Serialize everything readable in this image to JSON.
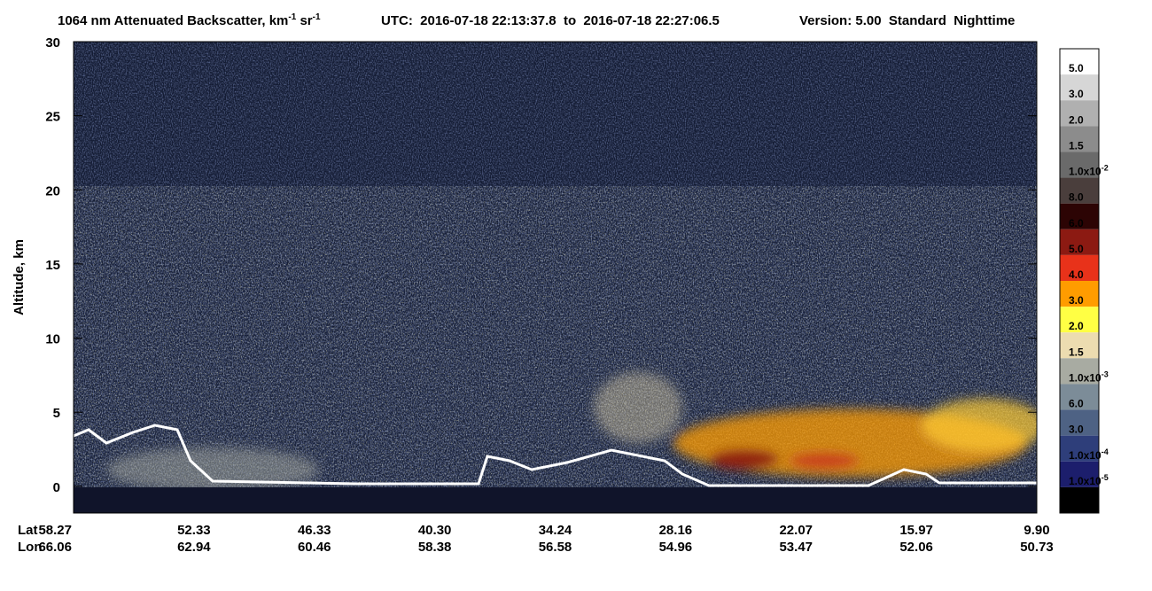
{
  "chart_data": {
    "type": "curtain",
    "title": [
      "1064 nm Attenuated Backscatter, km",
      "-1",
      " sr",
      "-1"
    ],
    "utc": "UTC:  2016-07-18 22:13:37.8  to  2016-07-18 22:27:06.5",
    "version": "Version: 5.00  Standard  Nighttime",
    "ylabel": "Altitude, km",
    "ylim": [
      -1.8,
      30
    ],
    "yticks": [
      0,
      5,
      10,
      15,
      20,
      25,
      30
    ],
    "xrows": [
      {
        "name": "Lat",
        "labels": [
          "58.27",
          "52.33",
          "46.33",
          "40.30",
          "34.24",
          "28.16",
          "22.07",
          "15.97",
          "9.90"
        ]
      },
      {
        "name": "Lon",
        "labels": [
          "66.06",
          "62.94",
          "60.46",
          "58.38",
          "56.58",
          "54.96",
          "53.47",
          "52.06",
          "50.73"
        ]
      }
    ],
    "colorbar": {
      "colors": [
        "#ffffff",
        "#d6d6d6",
        "#b0b0b0",
        "#8c8c8c",
        "#6a6a6a",
        "#4a3e3c",
        "#2c0404",
        "#8c1a12",
        "#e8321a",
        "#ff9c00",
        "#ffff44",
        "#ecdcb0",
        "#a8aba2",
        "#7c8c98",
        "#4e6284",
        "#2e3e7a",
        "#1c1e6c",
        "#000000"
      ],
      "tick_labels": [
        {
          "text": "5.0"
        },
        {
          "text": "3.0"
        },
        {
          "text": "2.0"
        },
        {
          "text": "1.5"
        },
        {
          "text": "1.0x10",
          "sup": "-2"
        },
        {
          "text": "8.0"
        },
        {
          "text": "6.0"
        },
        {
          "text": "5.0"
        },
        {
          "text": "4.0"
        },
        {
          "text": "3.0"
        },
        {
          "text": "2.0"
        },
        {
          "text": "1.5"
        },
        {
          "text": "1.0x10",
          "sup": "-3"
        },
        {
          "text": "6.0"
        },
        {
          "text": "3.0"
        },
        {
          "text": "1.0x10",
          "sup": "-4"
        },
        {
          "text": "1.0x10",
          "sup": "-5"
        }
      ]
    }
  }
}
